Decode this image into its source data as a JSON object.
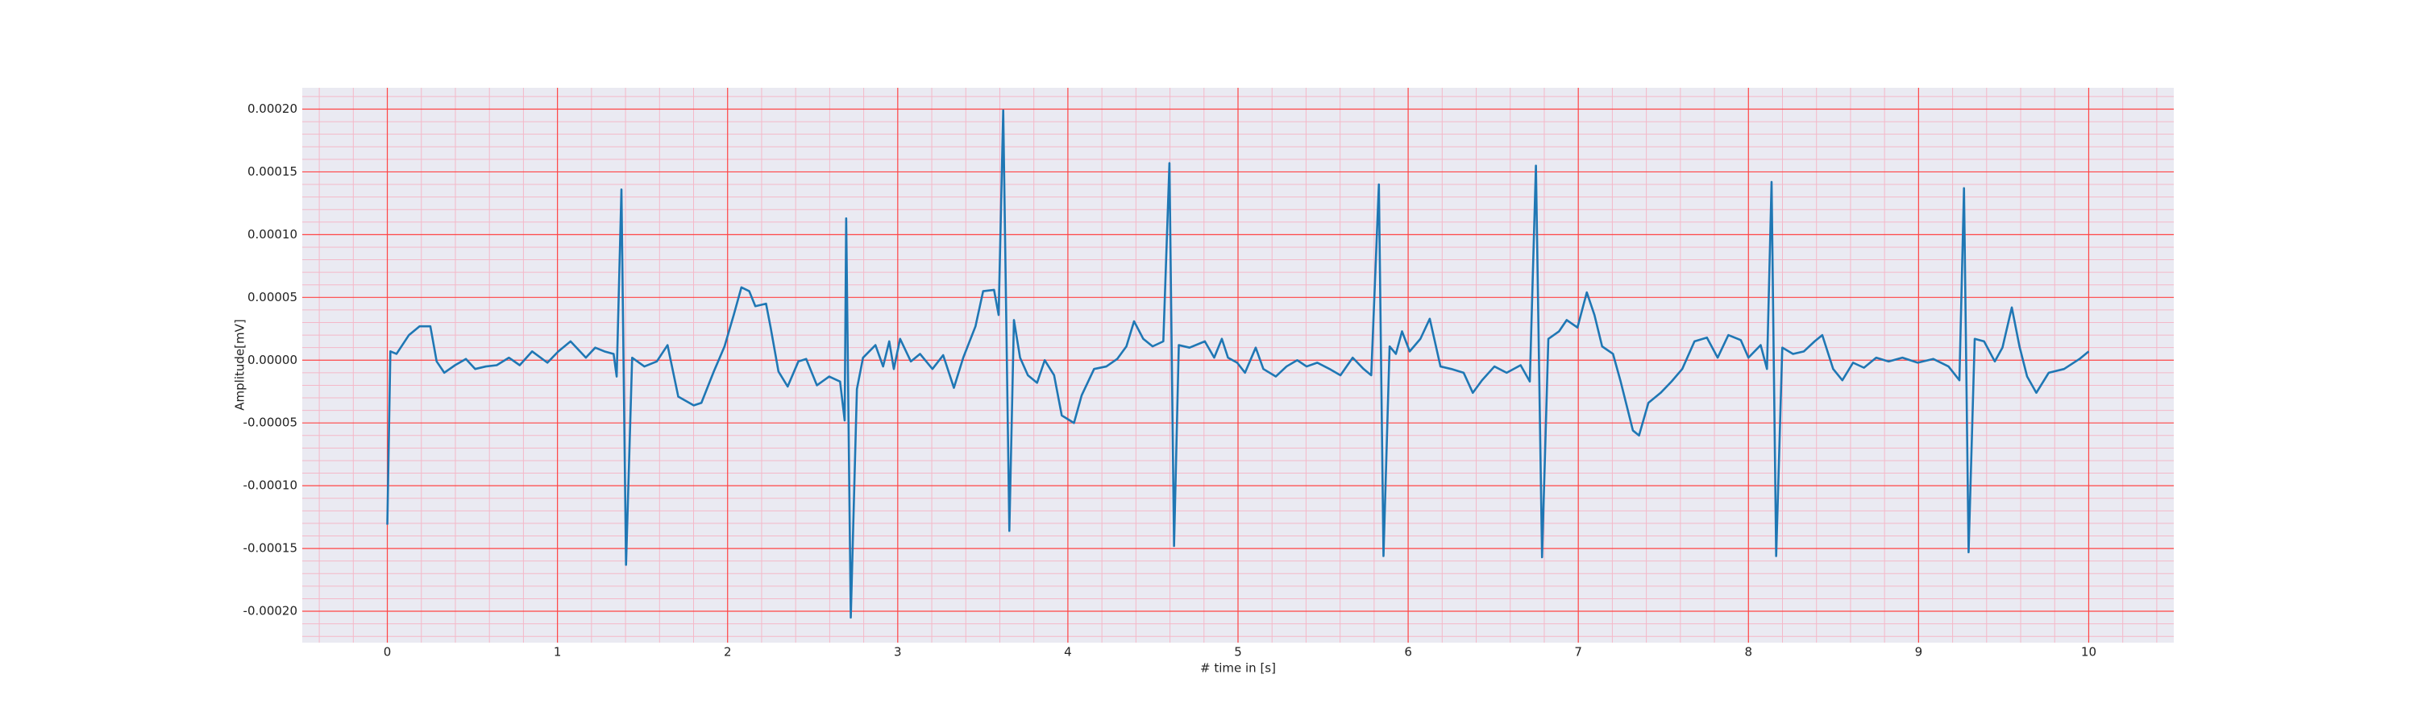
{
  "chart_data": {
    "type": "line",
    "xlabel": "# time in [s]",
    "ylabel": "Amplitude[mV]",
    "xlim": [
      -0.5,
      10.5
    ],
    "ylim": [
      -0.000225,
      0.000217
    ],
    "xticks": [
      0,
      1,
      2,
      3,
      4,
      5,
      6,
      7,
      8,
      9,
      10
    ],
    "yticks": [
      {
        "value": -0.0002,
        "label": "-0.00020"
      },
      {
        "value": -0.00015,
        "label": "-0.00015"
      },
      {
        "value": -0.0001,
        "label": "-0.00010"
      },
      {
        "value": -5e-05,
        "label": "-0.00005"
      },
      {
        "value": 0,
        "label": "0.00000"
      },
      {
        "value": 5e-05,
        "label": "0.00005"
      },
      {
        "value": 0.0001,
        "label": "0.00010"
      },
      {
        "value": 0.00015,
        "label": "0.00015"
      },
      {
        "value": 0.0002,
        "label": "0.00020"
      }
    ],
    "grid": true,
    "minor_grid": true,
    "grid_color": "#ff4444",
    "minor_grid_color": "#f4b8c8",
    "background": "#eaeaf2",
    "x": [
      0,
      0.018,
      0.054,
      0.127,
      0.19,
      0.253,
      0.29,
      0.335,
      0.398,
      0.462,
      0.516,
      0.579,
      0.643,
      0.715,
      0.778,
      0.851,
      0.941,
      1.005,
      1.077,
      1.167,
      1.222,
      1.276,
      1.33,
      1.348,
      1.376,
      1.403,
      1.439,
      1.511,
      1.584,
      1.647,
      1.71,
      1.801,
      1.846,
      1.919,
      1.982,
      2.036,
      2.081,
      2.127,
      2.163,
      2.226,
      2.253,
      2.299,
      2.353,
      2.416,
      2.462,
      2.525,
      2.597,
      2.661,
      2.688,
      2.697,
      2.724,
      2.76,
      2.796,
      2.869,
      2.914,
      2.95,
      2.977,
      3.014,
      3.077,
      3.131,
      3.204,
      3.267,
      3.33,
      3.385,
      3.457,
      3.502,
      3.566,
      3.593,
      3.62,
      3.656,
      3.683,
      3.719,
      3.765,
      3.819,
      3.864,
      3.919,
      3.964,
      4.036,
      4.081,
      4.154,
      4.226,
      4.29,
      4.344,
      4.389,
      4.443,
      4.498,
      4.561,
      4.597,
      4.624,
      4.652,
      4.715,
      4.805,
      4.86,
      4.905,
      4.941,
      4.995,
      5.041,
      5.104,
      5.149,
      5.222,
      5.285,
      5.348,
      5.403,
      5.466,
      5.538,
      5.602,
      5.674,
      5.738,
      5.783,
      5.828,
      5.855,
      5.891,
      5.928,
      5.964,
      6.009,
      6.072,
      6.127,
      6.19,
      6.253,
      6.326,
      6.38,
      6.434,
      6.507,
      6.579,
      6.661,
      6.715,
      6.751,
      6.787,
      6.824,
      6.887,
      6.932,
      6.995,
      7.05,
      7.095,
      7.14,
      7.204,
      7.249,
      7.321,
      7.357,
      7.412,
      7.484,
      7.548,
      7.611,
      7.683,
      7.756,
      7.819,
      7.882,
      7.955,
      8.0,
      8.072,
      8.109,
      8.136,
      8.163,
      8.199,
      8.262,
      8.326,
      8.389,
      8.434,
      8.498,
      8.552,
      8.615,
      8.679,
      8.751,
      8.824,
      8.905,
      8.995,
      9.086,
      9.176,
      9.24,
      9.267,
      9.294,
      9.33,
      9.385,
      9.448,
      9.493,
      9.548,
      9.593,
      9.638,
      9.692,
      9.765,
      9.855,
      9.946,
      10.0
    ],
    "series": [
      {
        "color": "#1f77b4",
        "values": [
          -0.000131,
          7e-06,
          5e-06,
          2e-05,
          2.7e-05,
          2.7e-05,
          -1e-06,
          -1e-05,
          -4e-06,
          1e-06,
          -7e-06,
          -5e-06,
          -4e-06,
          2e-06,
          -4e-06,
          7e-06,
          -2e-06,
          7e-06,
          1.5e-05,
          2e-06,
          1e-05,
          7e-06,
          5e-06,
          -1.3e-05,
          0.000136,
          -0.000163,
          2e-06,
          -5e-06,
          -1e-06,
          1.2e-05,
          -2.9e-05,
          -3.6e-05,
          -3.4e-05,
          -9e-06,
          1.1e-05,
          3.6e-05,
          5.8e-05,
          5.5e-05,
          4.3e-05,
          4.5e-05,
          2.6e-05,
          -9e-06,
          -2.1e-05,
          -1e-06,
          1e-06,
          -2e-05,
          -1.3e-05,
          -1.7e-05,
          -4.8e-05,
          0.000113,
          -0.000205,
          -2.3e-05,
          2e-06,
          1.2e-05,
          -5e-06,
          1.5e-05,
          -7e-06,
          1.7e-05,
          -1e-06,
          5e-06,
          -7e-06,
          4e-06,
          -2.2e-05,
          2e-06,
          2.7e-05,
          5.5e-05,
          5.6e-05,
          3.6e-05,
          0.000199,
          -0.000136,
          3.2e-05,
          2e-06,
          -1.2e-05,
          -1.8e-05,
          0,
          -1.2e-05,
          -4.4e-05,
          -5e-05,
          -2.8e-05,
          -7e-06,
          -5e-06,
          1e-06,
          1.1e-05,
          3.1e-05,
          1.7e-05,
          1.1e-05,
          1.5e-05,
          0.000157,
          -0.000148,
          1.2e-05,
          1e-05,
          1.5e-05,
          2e-06,
          1.7e-05,
          2e-06,
          -2e-06,
          -1e-05,
          1e-05,
          -7e-06,
          -1.3e-05,
          -5e-06,
          0,
          -5e-06,
          -2e-06,
          -7e-06,
          -1.2e-05,
          2e-06,
          -7e-06,
          -1.2e-05,
          0.00014,
          -0.000156,
          1.1e-05,
          5e-06,
          2.3e-05,
          7e-06,
          1.7e-05,
          3.3e-05,
          -5e-06,
          -7e-06,
          -1e-05,
          -2.6e-05,
          -1.6e-05,
          -5e-06,
          -1e-05,
          -4e-06,
          -1.7e-05,
          0.000155,
          -0.000157,
          1.7e-05,
          2.3e-05,
          3.2e-05,
          2.6e-05,
          5.4e-05,
          3.6e-05,
          1.1e-05,
          5e-06,
          -1.7e-05,
          -5.6e-05,
          -6e-05,
          -3.4e-05,
          -2.6e-05,
          -1.7e-05,
          -7e-06,
          1.5e-05,
          1.8e-05,
          2e-06,
          2e-05,
          1.6e-05,
          2e-06,
          1.2e-05,
          -7e-06,
          0.000142,
          -0.000156,
          1e-05,
          5e-06,
          7e-06,
          1.5e-05,
          2e-05,
          -7e-06,
          -1.6e-05,
          -2e-06,
          -6e-06,
          2e-06,
          -1e-06,
          2e-06,
          -2e-06,
          1e-06,
          -5e-06,
          -1.6e-05,
          0.000137,
          -0.000153,
          1.7e-05,
          1.5e-05,
          -1e-06,
          1e-05,
          4.2e-05,
          1.1e-05,
          -1.3e-05,
          -2.6e-05,
          -1e-05,
          -7e-06,
          1e-06,
          7e-06
        ]
      }
    ]
  }
}
